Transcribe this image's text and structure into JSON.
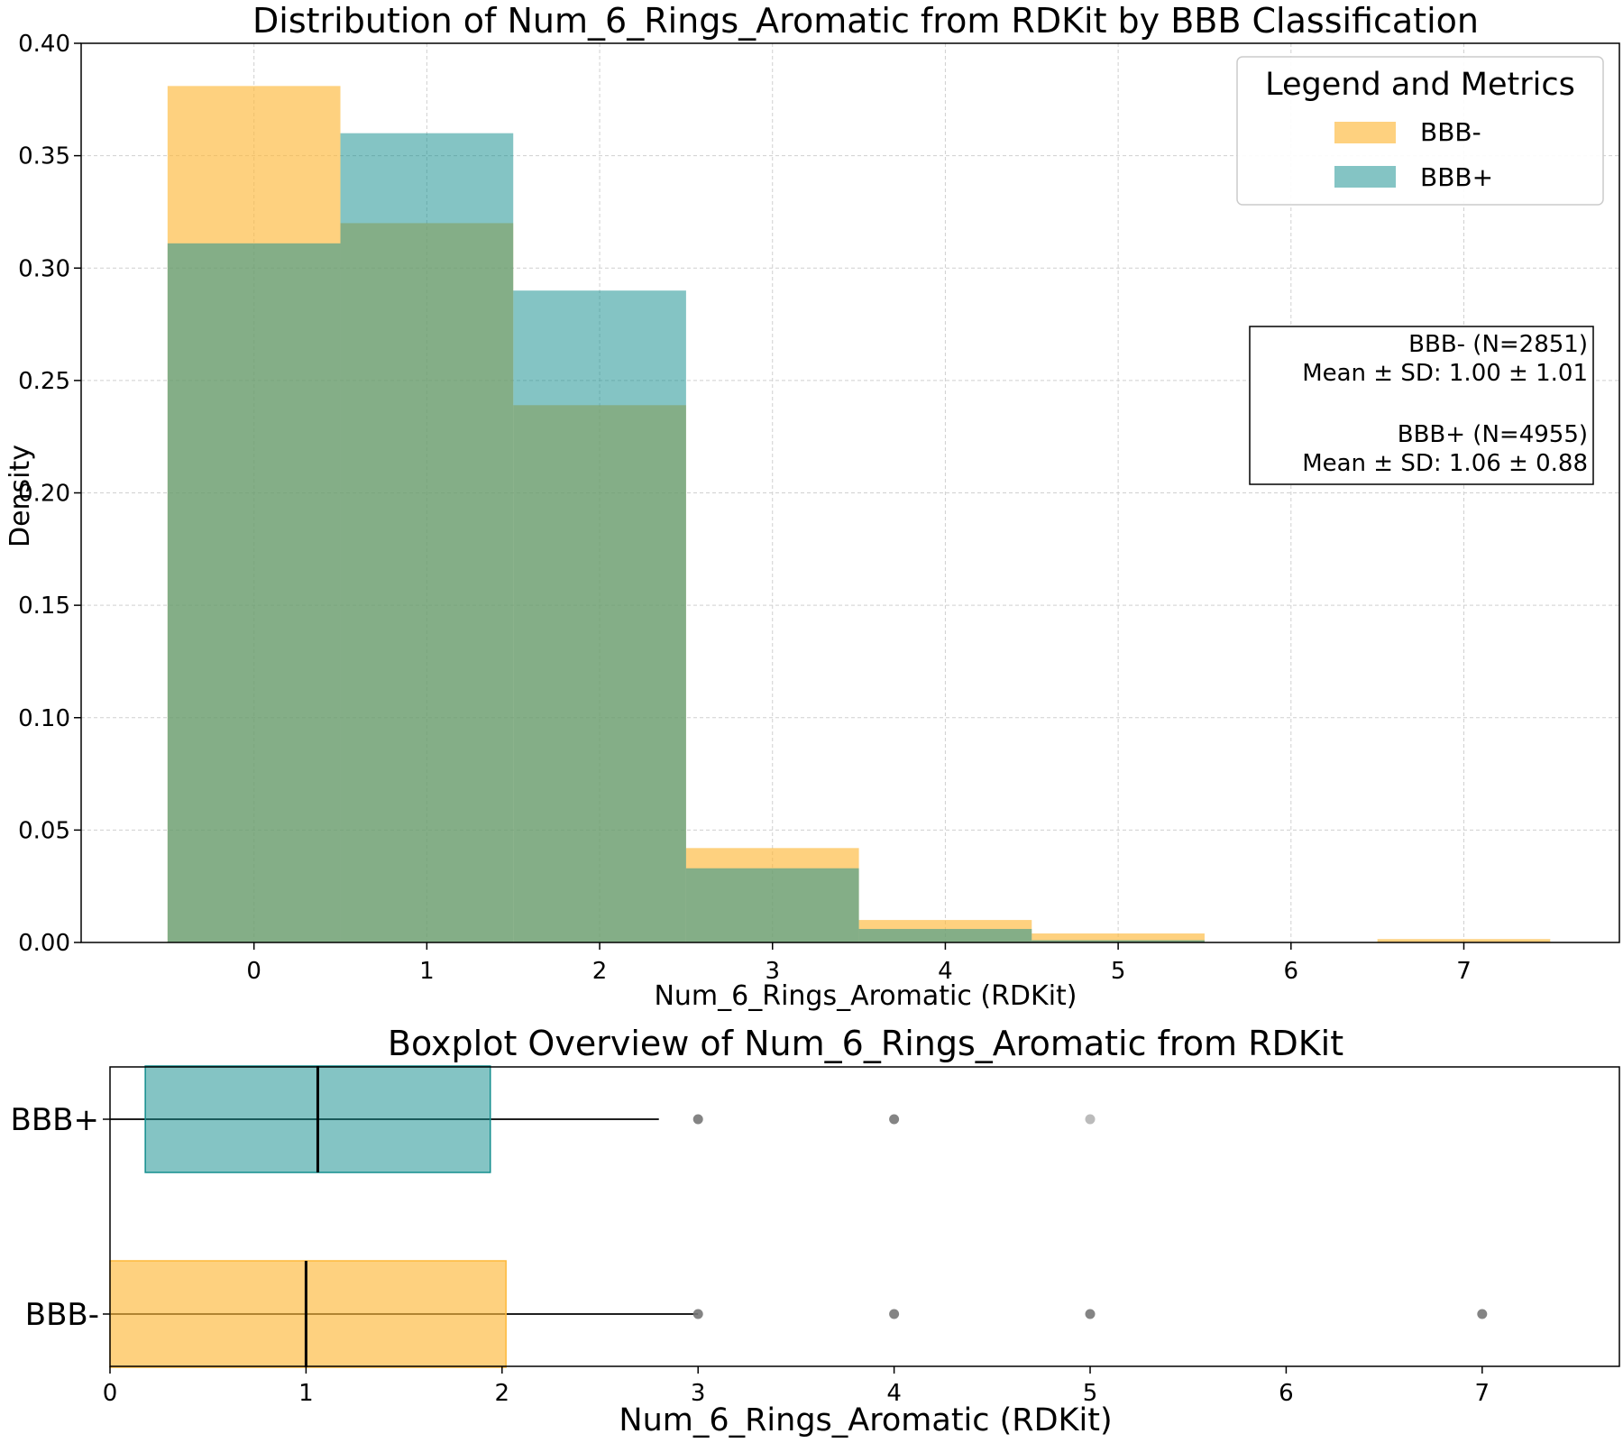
{
  "colors": {
    "bbb_minus": "#fdb93b",
    "bbb_plus": "#138e8e",
    "grid": "#d0d0d0",
    "outlier": "#777777"
  },
  "legend": {
    "title": "Legend and Metrics",
    "entries": [
      "BBB-",
      "BBB+"
    ]
  },
  "metrics": {
    "bbb_minus_n": "BBB- (N=2851)",
    "bbb_minus_stats": "Mean ± SD: 1.00 ± 1.01",
    "bbb_plus_n": "BBB+ (N=4955)",
    "bbb_plus_stats": "Mean ± SD: 1.06 ± 0.88"
  },
  "chart_data": [
    {
      "type": "bar",
      "title": "Distribution of Num_6_Rings_Aromatic from RDKit by BBB Classification",
      "xlabel": "Num_6_Rings_Aromatic (RDKit)",
      "ylabel": "Density",
      "xlim": [
        -1,
        7.9
      ],
      "ylim": [
        0,
        0.4
      ],
      "yticks": [
        "0.00",
        "0.05",
        "0.10",
        "0.15",
        "0.20",
        "0.25",
        "0.30",
        "0.35",
        "0.40"
      ],
      "xticks": [
        "0",
        "1",
        "2",
        "3",
        "4",
        "5",
        "6",
        "7"
      ],
      "grid": true,
      "legend_position": "top-right",
      "categories": [
        0,
        1,
        2,
        3,
        4,
        5,
        6,
        7
      ],
      "series": [
        {
          "name": "BBB-",
          "values": [
            0.381,
            0.32,
            0.239,
            0.042,
            0.01,
            0.004,
            0.0,
            0.0015
          ]
        },
        {
          "name": "BBB+",
          "values": [
            0.311,
            0.36,
            0.29,
            0.033,
            0.006,
            0.001,
            0.0,
            0.0
          ]
        }
      ]
    },
    {
      "type": "boxplot",
      "title": "Boxplot Overview of Num_6_Rings_Aromatic from RDKit",
      "xlabel": "Num_6_Rings_Aromatic (RDKit)",
      "xlim": [
        0,
        7.7
      ],
      "xticks": [
        "0",
        "1",
        "2",
        "3",
        "4",
        "5",
        "6",
        "7"
      ],
      "categories": [
        "BBB+",
        "BBB-"
      ],
      "boxes": [
        {
          "name": "BBB+",
          "whisker_low": 0,
          "q1": 0.18,
          "median": 1.06,
          "q3": 1.94,
          "whisker_high": 2.8,
          "outliers": [
            3,
            4,
            5
          ]
        },
        {
          "name": "BBB-",
          "whisker_low": 0,
          "q1": 0.0,
          "median": 1.0,
          "q3": 2.02,
          "whisker_high": 3.0,
          "outliers": [
            3,
            4,
            5,
            7
          ]
        }
      ]
    }
  ]
}
